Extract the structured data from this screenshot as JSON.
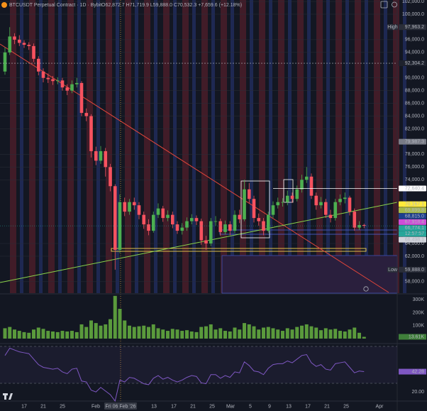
{
  "chart_data": [
    {
      "type": "candlestick",
      "title": "BTCUSDT Perpetual Contract · 1D · Bybit",
      "subtitle": "O62,872.7 H71,719.9 L59,888.0 C70,532.3 +7,659.6 (+12.18%)",
      "up_color": "#4caf50",
      "down_color": "#f7525f",
      "open": [
        91000,
        94000,
        96500,
        96000,
        95500,
        95200,
        95000,
        93000,
        91000,
        90000,
        89800,
        89500,
        89600,
        88500,
        88000,
        89000,
        89200,
        84500,
        84000,
        78500,
        77000,
        78500,
        76000,
        73000,
        63000,
        70500,
        69000,
        70500,
        70000,
        68500,
        67000,
        66000,
        68500,
        69500,
        68000,
        68500,
        67000,
        66000,
        66500,
        67500,
        68000,
        67500,
        64500,
        64000,
        67500,
        67500,
        65800,
        67000,
        66000,
        68500,
        67800,
        72500,
        71000,
        68000,
        67500,
        66000,
        68500,
        70000,
        70500,
        70500,
        71500,
        71000,
        72500,
        74000,
        74500,
        71500,
        70000,
        70500,
        68500,
        68000,
        70500,
        71000,
        71200,
        69000,
        66500,
        66900
      ],
      "high": [
        94800,
        97963.2,
        97000,
        96700,
        95900,
        95600,
        95400,
        93400,
        91500,
        90700,
        90300,
        90100,
        90000,
        89000,
        89600,
        90000,
        89500,
        85200,
        84300,
        79200,
        79300,
        79000,
        76500,
        73300,
        71700,
        71200,
        71000,
        71200,
        70500,
        69000,
        67800,
        69000,
        70300,
        69900,
        69200,
        69000,
        67500,
        67200,
        68100,
        68600,
        68400,
        67900,
        65200,
        68000,
        68300,
        67900,
        67600,
        67500,
        69200,
        69300,
        74000,
        73500,
        71500,
        68700,
        68000,
        69000,
        70600,
        71200,
        71100,
        72300,
        72000,
        73100,
        74800,
        76000,
        75000,
        72000,
        71300,
        71000,
        69300,
        71000,
        71700,
        72000,
        71500,
        69500,
        67500,
        67100
      ],
      "low": [
        90500,
        93600,
        95300,
        95000,
        94700,
        94400,
        92500,
        90400,
        89300,
        89200,
        88900,
        89000,
        88000,
        87300,
        87600,
        88500,
        84000,
        83200,
        77500,
        76300,
        76500,
        74500,
        72200,
        59888,
        62500,
        68300,
        68500,
        69300,
        67800,
        66300,
        65300,
        65700,
        68000,
        67400,
        67500,
        66400,
        65500,
        65400,
        66000,
        67000,
        66900,
        63800,
        63000,
        63600,
        66800,
        65200,
        65400,
        65300,
        65600,
        67200,
        67500,
        70300,
        67300,
        66800,
        65300,
        65700,
        68000,
        69500,
        69800,
        70000,
        70400,
        70600,
        72000,
        73500,
        71000,
        69300,
        69500,
        68000,
        67300,
        67600,
        70000,
        70300,
        68400,
        66000,
        66100,
        66400
      ],
      "close": [
        94000,
        96500,
        96000,
        95500,
        95200,
        95000,
        93000,
        91000,
        90000,
        89800,
        89500,
        89600,
        88500,
        88000,
        89000,
        89200,
        84500,
        84000,
        78500,
        77000,
        78500,
        76000,
        73000,
        63000,
        70500,
        69000,
        70500,
        70000,
        68500,
        67000,
        66000,
        68500,
        69500,
        68000,
        68500,
        67000,
        66000,
        66500,
        67500,
        68000,
        67500,
        64500,
        64000,
        67500,
        67500,
        65800,
        67000,
        66000,
        68500,
        67800,
        72500,
        71000,
        68000,
        67500,
        66000,
        68500,
        70000,
        70500,
        70500,
        71500,
        71000,
        72500,
        74000,
        74500,
        71500,
        70000,
        70500,
        68500,
        68000,
        70500,
        71000,
        71200,
        69000,
        66500,
        66900,
        66774.1
      ],
      "ylim": [
        56200,
        102230
      ],
      "yticks": [
        {
          "value": 102000,
          "label": "102,000.0"
        },
        {
          "value": 100000,
          "label": "100,000.0"
        },
        {
          "value": 96000,
          "label": "96,000.0"
        },
        {
          "value": 94000,
          "label": "94,000.0"
        },
        {
          "value": 90000,
          "label": "90,000.0"
        },
        {
          "value": 88000,
          "label": "88,000.0"
        },
        {
          "value": 86000,
          "label": "86,000.0"
        },
        {
          "value": 84000,
          "label": "84,000.0"
        },
        {
          "value": 82000,
          "label": "82,000.0"
        },
        {
          "value": 78000,
          "label": "78,000.0"
        },
        {
          "value": 76000,
          "label": "76,000.0"
        },
        {
          "value": 74000,
          "label": "74,000.0"
        },
        {
          "value": 64000,
          "label": "64,000.0"
        },
        {
          "value": 62000,
          "label": "62,000.0"
        },
        {
          "value": 58000,
          "label": "58,000.0"
        }
      ],
      "grid": true,
      "badges": [
        {
          "name": "High",
          "value": 97963.2,
          "label": "97,963.2",
          "color": "#2a2e39"
        },
        {
          "value": 92304.2,
          "label": "92,304.2",
          "color": "#1e222d"
        },
        {
          "value": 79987.3,
          "label": "79,987.3",
          "color": "#787b86"
        },
        {
          "value": 72640.4,
          "label": "72,640.4",
          "color": "#ffffff"
        },
        {
          "value": 70167.1,
          "label": "70,167.1",
          "color": "#ffeb3b"
        },
        {
          "value": 69899.8,
          "label": "69,899.8",
          "color": "#a5b94a"
        },
        {
          "value": 68815.0,
          "label": "68,815.0",
          "color": "#1c3f8f"
        },
        {
          "value": 67918.4,
          "label": "67,918.4",
          "color": "#d04dd8"
        },
        {
          "value": 66774.1,
          "label": "66,774.1",
          "color": "#26a69a"
        },
        {
          "value": 66498.1,
          "label": "66,498.1",
          "color": "#d1d4dc"
        },
        {
          "name": "Low",
          "value": 59888.0,
          "label": "59,888.0",
          "color": "#2a2e39"
        }
      ],
      "countdown": "12:57:57",
      "xtick_labels": [
        "17",
        "21",
        "25",
        "Feb",
        "Fri 06 Feb '26",
        "13",
        "17",
        "21",
        "25",
        "Mar",
        "5",
        "9",
        "13",
        "17",
        "21",
        "25",
        "Apr"
      ]
    },
    {
      "type": "bar",
      "color": "#5a9a3c",
      "values": [
        80000,
        90000,
        70000,
        60000,
        50000,
        45000,
        70000,
        85000,
        75000,
        60000,
        55000,
        50000,
        60000,
        55000,
        60000,
        50000,
        110000,
        90000,
        140000,
        120000,
        100000,
        110000,
        150000,
        330000,
        230000,
        140000,
        100000,
        90000,
        95000,
        100000,
        90000,
        110000,
        80000,
        70000,
        60000,
        75000,
        70000,
        60000,
        65000,
        55000,
        50000,
        90000,
        95000,
        110000,
        70000,
        80000,
        60000,
        55000,
        85000,
        70000,
        120000,
        110000,
        95000,
        70000,
        85000,
        90000,
        80000,
        70000,
        60000,
        80000,
        70000,
        90000,
        100000,
        110000,
        95000,
        85000,
        65000,
        80000,
        70000,
        75000,
        60000,
        55000,
        70000,
        85000,
        45000,
        13610
      ],
      "value_labels": {
        "75": "13.61K"
      },
      "ylim": [
        0,
        340000
      ],
      "yticks": [
        {
          "value": 300000,
          "label": "300K"
        },
        {
          "value": 200000,
          "label": "200K"
        },
        {
          "value": 100000,
          "label": "100K"
        }
      ]
    },
    {
      "type": "line",
      "color": "#7e57c2",
      "values": [
        60,
        68,
        66,
        64,
        63,
        62,
        56,
        50,
        47,
        46,
        45,
        46,
        42,
        40,
        45,
        46,
        32,
        31,
        22,
        20,
        25,
        21,
        17,
        10,
        33,
        31,
        36,
        35,
        32,
        29,
        28,
        35,
        38,
        34,
        36,
        33,
        31,
        33,
        36,
        38,
        37,
        30,
        29,
        39,
        39,
        35,
        38,
        36,
        42,
        41,
        53,
        49,
        43,
        42,
        39,
        46,
        50,
        51,
        51,
        54,
        52,
        56,
        60,
        61,
        52,
        48,
        50,
        45,
        44,
        51,
        52,
        53,
        47,
        41,
        43,
        42.28
      ],
      "ylim": [
        10,
        72.3
      ],
      "yticks": [
        {
          "value": 20,
          "label": "20.00"
        }
      ]
    }
  ]
}
